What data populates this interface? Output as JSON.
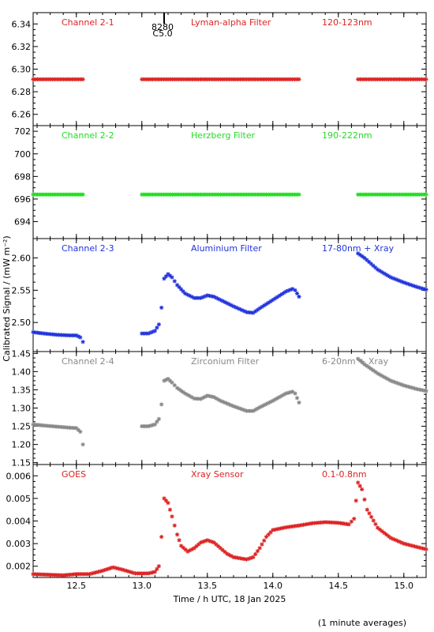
{
  "chart_data": {
    "type": "scatter",
    "xlabel": "Time / h UTC, 18 Jan 2025",
    "ylabel": "Calibrated Signal / (mW m⁻²)",
    "footnote": "(1 minute averages)",
    "xlim": [
      12.17,
      15.17
    ],
    "xticks": [
      12.5,
      13.0,
      13.5,
      14.0,
      14.5,
      15.0
    ],
    "xtick_labels": [
      "12.5",
      "13.0",
      "13.5",
      "14.0",
      "14.5",
      "15.0"
    ],
    "flare_marker": {
      "x": 13.17,
      "labels": [
        "8280",
        "C5.0"
      ]
    },
    "panels": [
      {
        "name": "Channel 2-1",
        "filter": "Lyman-alpha Filter",
        "band": "120-123nm",
        "color": "#dd2222",
        "ylim": [
          6.25,
          6.35
        ],
        "yticks": [
          6.26,
          6.28,
          6.3,
          6.32,
          6.34
        ],
        "ytick_labels": [
          "6.26",
          "6.28",
          "6.30",
          "6.32",
          "6.34"
        ],
        "series": [
          {
            "x": [
              12.17,
              12.55
            ],
            "y": [
              6.291,
              6.291
            ]
          },
          {
            "x": [
              13.0,
              14.2
            ],
            "y": [
              6.291,
              6.291
            ]
          },
          {
            "x": [
              14.65,
              15.17
            ],
            "y": [
              6.291,
              6.291
            ]
          }
        ]
      },
      {
        "name": "Channel 2-2",
        "filter": "Herzberg Filter",
        "band": "190-222nm",
        "color": "#22dd22",
        "ylim": [
          692.5,
          702.5
        ],
        "yticks": [
          694,
          696,
          698,
          700,
          702
        ],
        "ytick_labels": [
          "694",
          "696",
          "698",
          "700",
          "702"
        ],
        "series": [
          {
            "x": [
              12.17,
              12.55
            ],
            "y": [
              696.4,
              696.4
            ]
          },
          {
            "x": [
              13.0,
              14.2
            ],
            "y": [
              696.4,
              696.4
            ]
          },
          {
            "x": [
              14.65,
              15.17
            ],
            "y": [
              696.4,
              696.4
            ]
          }
        ]
      },
      {
        "name": "Channel 2-3",
        "filter": "Aluminium Filter",
        "band": "17-80nm + Xray",
        "color": "#2233dd",
        "ylim": [
          2.455,
          2.63
        ],
        "yticks": [
          2.5,
          2.55,
          2.6
        ],
        "ytick_labels": [
          "2.50",
          "2.55",
          "2.60"
        ],
        "series": [
          {
            "x": [
              12.17,
              12.25,
              12.35,
              12.45,
              12.5,
              12.53,
              12.55
            ],
            "y": [
              2.485,
              2.483,
              2.481,
              2.48,
              2.48,
              2.477,
              2.47
            ]
          },
          {
            "x": [
              13.0,
              13.05,
              13.1,
              13.13,
              13.15,
              13.17,
              13.2,
              13.23,
              13.27,
              13.33,
              13.4,
              13.45,
              13.5,
              13.55,
              13.6,
              13.7,
              13.8,
              13.85,
              13.9,
              14.0,
              14.1,
              14.15,
              14.17,
              14.2
            ],
            "y": [
              2.483,
              2.483,
              2.487,
              2.497,
              2.523,
              2.568,
              2.575,
              2.57,
              2.558,
              2.545,
              2.538,
              2.538,
              2.542,
              2.54,
              2.535,
              2.525,
              2.516,
              2.515,
              2.522,
              2.535,
              2.548,
              2.552,
              2.55,
              2.54
            ]
          },
          {
            "x": [
              14.65,
              14.7,
              14.8,
              14.9,
              15.0,
              15.1,
              15.17
            ],
            "y": [
              2.607,
              2.6,
              2.582,
              2.57,
              2.562,
              2.555,
              2.551
            ]
          }
        ]
      },
      {
        "name": "Channel 2-4",
        "filter": "Zirconium Filter",
        "band": "6-20nm + Xray",
        "color": "#888888",
        "ylim": [
          1.145,
          1.455
        ],
        "yticks": [
          1.15,
          1.2,
          1.25,
          1.3,
          1.35,
          1.4,
          1.45
        ],
        "ytick_labels": [
          "1.15",
          "1.20",
          "1.25",
          "1.30",
          "1.35",
          "1.40",
          "1.45"
        ],
        "series": [
          {
            "x": [
              12.17,
              12.25,
              12.35,
              12.45,
              12.5,
              12.53,
              12.55
            ],
            "y": [
              1.255,
              1.252,
              1.249,
              1.246,
              1.245,
              1.235,
              1.2
            ]
          },
          {
            "x": [
              13.0,
              13.05,
              13.1,
              13.13,
              13.15,
              13.17,
              13.2,
              13.23,
              13.27,
              13.33,
              13.4,
              13.45,
              13.5,
              13.55,
              13.6,
              13.7,
              13.8,
              13.85,
              13.9,
              14.0,
              14.1,
              14.15,
              14.17,
              14.2
            ],
            "y": [
              1.25,
              1.25,
              1.255,
              1.27,
              1.31,
              1.375,
              1.38,
              1.37,
              1.355,
              1.34,
              1.326,
              1.325,
              1.334,
              1.33,
              1.32,
              1.305,
              1.292,
              1.292,
              1.302,
              1.32,
              1.34,
              1.345,
              1.34,
              1.315
            ]
          },
          {
            "x": [
              14.65,
              14.7,
              14.8,
              14.9,
              15.0,
              15.1,
              15.17
            ],
            "y": [
              1.435,
              1.42,
              1.395,
              1.375,
              1.362,
              1.352,
              1.347
            ]
          }
        ]
      },
      {
        "name": "GOES",
        "filter": "Xray Sensor",
        "band": "0.1-0.8nm",
        "color": "#dd2222",
        "ylim": [
          0.0015,
          0.0065
        ],
        "yticks": [
          0.002,
          0.003,
          0.004,
          0.005,
          0.006
        ],
        "ytick_labels": [
          "0.002",
          "0.003",
          "0.004",
          "0.005",
          "0.006"
        ],
        "series": [
          {
            "x": [
              12.17,
              12.3,
              12.4,
              12.5,
              12.6,
              12.7,
              12.78,
              12.85,
              12.95,
              13.05,
              13.1,
              13.13,
              13.15,
              13.17,
              13.2,
              13.23,
              13.27,
              13.3,
              13.35,
              13.4,
              13.45,
              13.5,
              13.55,
              13.6,
              13.65,
              13.7,
              13.75,
              13.8,
              13.85,
              13.9,
              13.95,
              14.0,
              14.1,
              14.2,
              14.3,
              14.4,
              14.5,
              14.58,
              14.62,
              14.65,
              14.68,
              14.72,
              14.8,
              14.9,
              15.0,
              15.1,
              15.17
            ],
            "y": [
              0.00165,
              0.00162,
              0.0016,
              0.00165,
              0.00165,
              0.0018,
              0.00195,
              0.00185,
              0.00168,
              0.00168,
              0.00175,
              0.002,
              0.0033,
              0.005,
              0.0048,
              0.0042,
              0.0034,
              0.0029,
              0.00265,
              0.0028,
              0.00305,
              0.00315,
              0.00305,
              0.0028,
              0.00255,
              0.0024,
              0.00235,
              0.0023,
              0.0024,
              0.0028,
              0.0033,
              0.0036,
              0.00372,
              0.0038,
              0.0039,
              0.00395,
              0.00392,
              0.00385,
              0.0041,
              0.0057,
              0.0054,
              0.0045,
              0.0037,
              0.00325,
              0.003,
              0.00285,
              0.00275
            ]
          }
        ]
      }
    ]
  }
}
